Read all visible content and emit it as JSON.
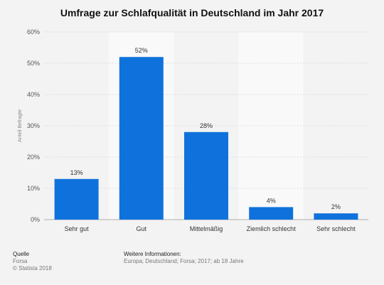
{
  "title": "Umfrage zur Schlafqualität in Deutschland im Jahr 2017",
  "chart_data": {
    "type": "bar",
    "title": "Umfrage zur Schlafqualität in Deutschland im Jahr 2017",
    "categories": [
      "Sehr gut",
      "Gut",
      "Mittelmäßig",
      "Ziemlich schlecht",
      "Sehr schlecht"
    ],
    "values": [
      13,
      52,
      28,
      4,
      2
    ],
    "data_labels": [
      "13%",
      "52%",
      "28%",
      "4%",
      "2%"
    ],
    "xlabel": "",
    "ylabel": "Anteil Befragte",
    "ylim": [
      0,
      60
    ],
    "yticks": [
      0,
      10,
      20,
      30,
      40,
      50,
      60
    ],
    "ytick_labels": [
      "0%",
      "10%",
      "20%",
      "30%",
      "40%",
      "50%",
      "60%"
    ],
    "grid": true,
    "bar_color": "#0f72dc"
  },
  "footer": {
    "source_heading": "Quelle",
    "source": "Forsa",
    "copyright": "© Statista 2018",
    "info_heading": "Weitere Informationen:",
    "info": "Europa; Deutschland; Forsa; 2017; ab 18 Jahre"
  }
}
